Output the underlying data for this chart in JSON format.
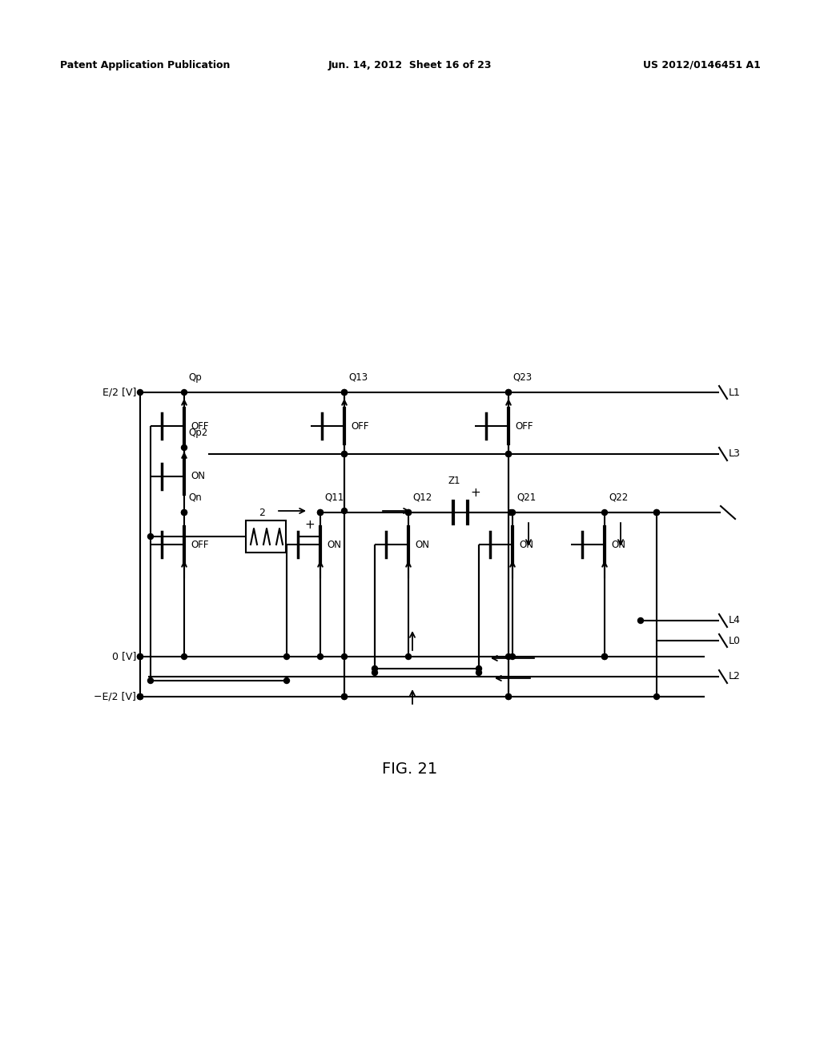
{
  "title": "FIG. 21",
  "header_left": "Patent Application Publication",
  "header_center": "Jun. 14, 2012  Sheet 16 of 23",
  "header_right": "US 2012/0146451 A1",
  "bg_color": "#ffffff",
  "fig_width": 10.24,
  "fig_height": 13.2,
  "dpi": 100
}
